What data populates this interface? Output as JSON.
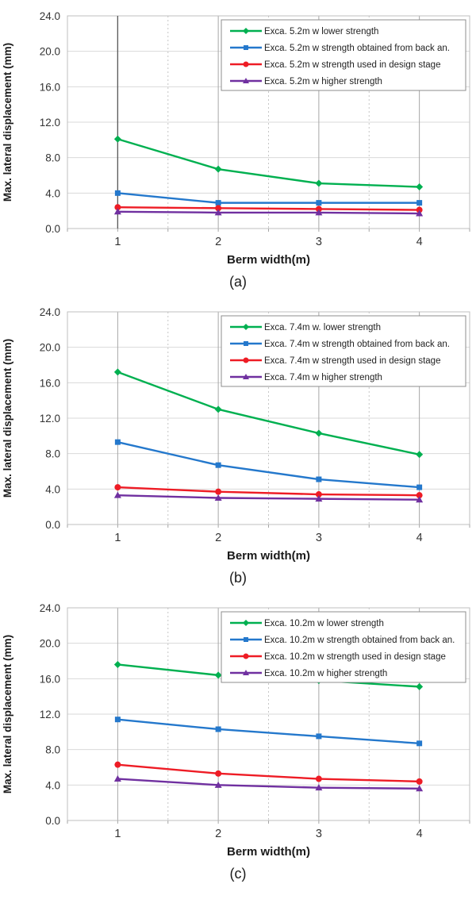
{
  "figure": {
    "background": "#ffffff",
    "grid": {
      "h_color": "#d9d9d9",
      "v_major_color": "#a6a6a6",
      "v_minor_color": "#c6c6c6",
      "border_color": "#bfbfbf",
      "dark_line_color": "#595959"
    }
  },
  "chart_data": [
    {
      "type": "line",
      "caption": "(a)",
      "xlabel": "Berm width(m)",
      "ylabel": "Max. lateral displacement (mm)",
      "x": [
        1,
        2,
        3,
        4
      ],
      "xticks": [
        "1",
        "2",
        "3",
        "4"
      ],
      "xlim": [
        0.5,
        4.5
      ],
      "ylim": [
        0,
        24
      ],
      "ytick_step": 4,
      "ytick_labels": [
        "0.0",
        "4.0",
        "8.0",
        "12.0",
        "16.0",
        "20.0",
        "24.0"
      ],
      "grid": "on",
      "legend_position": "top-right",
      "dark_vertical_line_at_x": 1,
      "series": [
        {
          "name": "Exca. 5.2m w lower strength",
          "color": "#00B050",
          "marker": "diamond",
          "values": [
            10.1,
            6.7,
            5.1,
            4.7
          ]
        },
        {
          "name": "Exca. 5.2m w strength obtained from back an.",
          "color": "#2478CC",
          "marker": "square",
          "values": [
            4.0,
            2.9,
            2.9,
            2.9
          ]
        },
        {
          "name": "Exca. 5.2m w strength used in design stage",
          "color": "#EE1C25",
          "marker": "circle",
          "values": [
            2.4,
            2.3,
            2.2,
            2.1
          ]
        },
        {
          "name": "Exca. 5.2m w higher strength",
          "color": "#7030A0",
          "marker": "triangle",
          "values": [
            1.9,
            1.8,
            1.8,
            1.7
          ]
        }
      ]
    },
    {
      "type": "line",
      "caption": "(b)",
      "xlabel": "Berm width(m)",
      "ylabel": "Max. lateral displacement (mm)",
      "x": [
        1,
        2,
        3,
        4
      ],
      "xticks": [
        "1",
        "2",
        "3",
        "4"
      ],
      "xlim": [
        0.5,
        4.5
      ],
      "ylim": [
        0,
        24
      ],
      "ytick_step": 4,
      "ytick_labels": [
        "0.0",
        "4.0",
        "8.0",
        "12.0",
        "16.0",
        "20.0",
        "24.0"
      ],
      "grid": "on",
      "legend_position": "top-right",
      "dark_vertical_line_at_x": null,
      "series": [
        {
          "name": "Exca. 7.4m w. lower strength",
          "color": "#00B050",
          "marker": "diamond",
          "values": [
            17.2,
            13.0,
            10.3,
            7.9
          ]
        },
        {
          "name": "Exca. 7.4m w strength obtained from back an.",
          "color": "#2478CC",
          "marker": "square",
          "values": [
            9.3,
            6.7,
            5.1,
            4.2
          ]
        },
        {
          "name": "Exca. 7.4m w strength used in design stage",
          "color": "#EE1C25",
          "marker": "circle",
          "values": [
            4.2,
            3.7,
            3.4,
            3.3
          ]
        },
        {
          "name": "Exca. 7.4m w higher strength",
          "color": "#7030A0",
          "marker": "triangle",
          "values": [
            3.3,
            3.0,
            2.9,
            2.8
          ]
        }
      ]
    },
    {
      "type": "line",
      "caption": "(c)",
      "xlabel": "Berm width(m)",
      "ylabel": "Max. lateral displacement (mm)",
      "x": [
        1,
        2,
        3,
        4
      ],
      "xticks": [
        "1",
        "2",
        "3",
        "4"
      ],
      "xlim": [
        0.5,
        4.5
      ],
      "ylim": [
        0,
        24
      ],
      "ytick_step": 4,
      "ytick_labels": [
        "0.0",
        "4.0",
        "8.0",
        "12.0",
        "16.0",
        "20.0",
        "24.0"
      ],
      "grid": "on",
      "legend_position": "top-right",
      "dark_vertical_line_at_x": null,
      "series": [
        {
          "name": "Exca. 10.2m w lower strength",
          "color": "#00B050",
          "marker": "diamond",
          "values": [
            17.6,
            16.4,
            15.8,
            15.1
          ]
        },
        {
          "name": "Exca. 10.2m w strength obtained from back an.",
          "color": "#2478CC",
          "marker": "square",
          "values": [
            11.4,
            10.3,
            9.5,
            8.7
          ]
        },
        {
          "name": "Exca. 10.2m w strength used in design stage",
          "color": "#EE1C25",
          "marker": "circle",
          "values": [
            6.3,
            5.3,
            4.7,
            4.4
          ]
        },
        {
          "name": "Exca. 10.2m w higher strength",
          "color": "#7030A0",
          "marker": "triangle",
          "values": [
            4.7,
            4.0,
            3.7,
            3.6
          ]
        }
      ]
    }
  ]
}
